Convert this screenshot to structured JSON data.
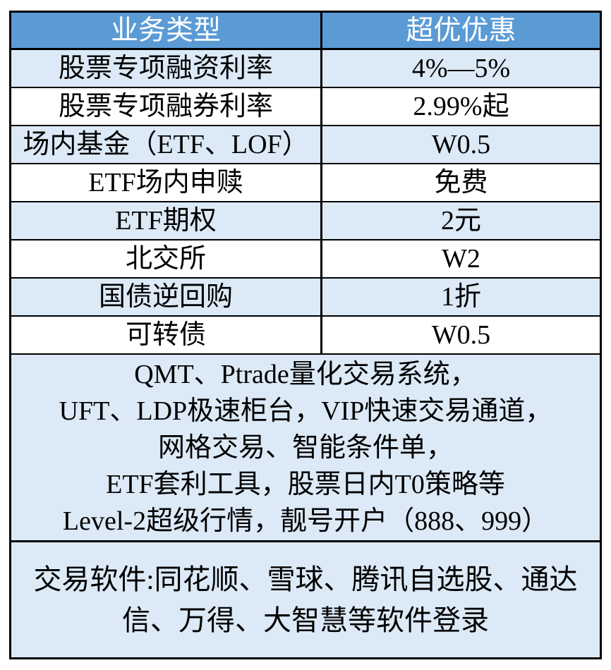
{
  "table": {
    "header": {
      "business_type_label": "业务类型",
      "discount_label": "超优优惠"
    },
    "rows": [
      {
        "label": "股票专项融资利率",
        "value": "4%—5%"
      },
      {
        "label": "股票专项融券利率",
        "value": "2.99%起"
      },
      {
        "label": "场内基金（ETF、LOF）",
        "value": "W0.5"
      },
      {
        "label": "ETF场内申赎",
        "value": "免费"
      },
      {
        "label": "ETF期权",
        "value": "2元"
      },
      {
        "label": "北交所",
        "value": "W2"
      },
      {
        "label": "国债逆回购",
        "value": "1折"
      },
      {
        "label": "可转债",
        "value": "W0.5"
      }
    ],
    "features_block": {
      "lines": [
        "QMT、Ptrade量化交易系统，",
        "UFT、LDP极速柜台，VIP快速交易通道，",
        "网格交易、智能条件单，",
        "ETF套利工具，股票日内T0策略等",
        "Level-2超级行情，靓号开户（888、999）"
      ]
    },
    "software_block": {
      "text": "交易软件:同花顺、雪球、腾讯自选股、通达信、万得、大智慧等软件登录"
    },
    "colors": {
      "header_bg": "#5b9bd5",
      "header_text": "#ffffff",
      "row_alt_bg": "#dce9f6",
      "row_bg": "#ffffff",
      "border": "#000000"
    }
  }
}
